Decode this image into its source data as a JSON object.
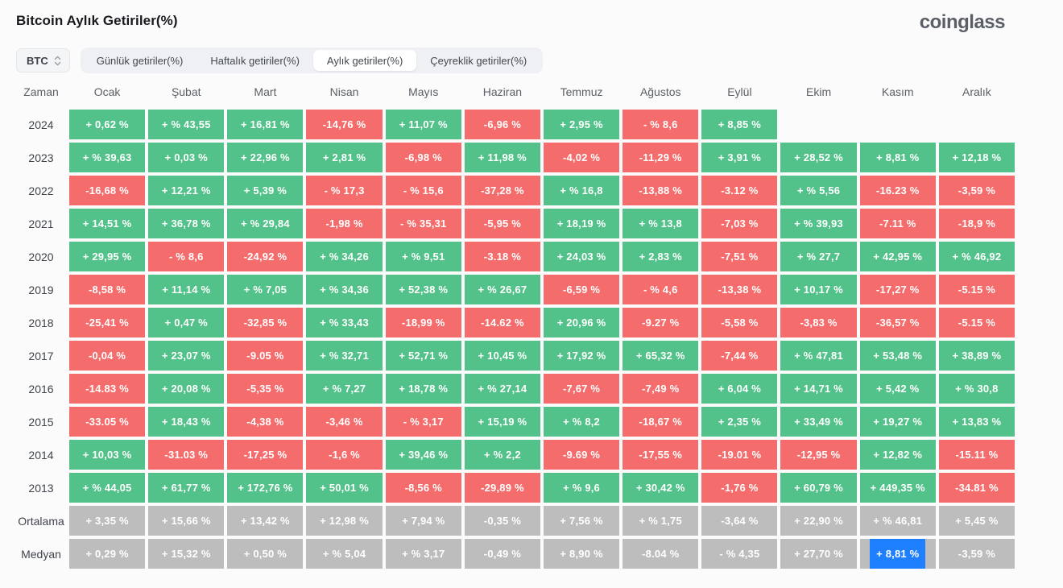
{
  "header": {
    "title": "Bitcoin Aylık Getiriler(%)",
    "logo": "coinglass"
  },
  "controls": {
    "symbol": "BTC",
    "tabs": [
      {
        "label": "Günlük getiriler(%)",
        "active": false
      },
      {
        "label": "Haftalık getiriler(%)",
        "active": false
      },
      {
        "label": "Aylık getiriler(%)",
        "active": true
      },
      {
        "label": "Çeyreklik getiriler(%)",
        "active": false
      }
    ]
  },
  "colors": {
    "positive": "#53c28a",
    "negative": "#f56c6c",
    "neutral": "#bdbdbd",
    "selected": "#1e80ff"
  },
  "table": {
    "time_header": "Zaman",
    "months": [
      "Ocak",
      "Şubat",
      "Mart",
      "Nisan",
      "Mayıs",
      "Haziran",
      "Temmuz",
      "Ağustos",
      "Eylül",
      "Ekim",
      "Kasım",
      "Aralık"
    ],
    "rows": [
      {
        "label": "2024",
        "cells": [
          {
            "t": "+ 0,62 %",
            "c": "pos"
          },
          {
            "t": "+ % 43,55",
            "c": "pos"
          },
          {
            "t": "+ 16,81 %",
            "c": "pos"
          },
          {
            "t": "-14,76 %",
            "c": "neg"
          },
          {
            "t": "+ 11,07 %",
            "c": "pos"
          },
          {
            "t": "-6,96 %",
            "c": "neg"
          },
          {
            "t": "+ 2,95 %",
            "c": "pos"
          },
          {
            "t": "- % 8,6",
            "c": "neg"
          },
          {
            "t": "+ 8,85 %",
            "c": "pos"
          },
          {
            "t": "",
            "c": "empty"
          },
          {
            "t": "",
            "c": "empty"
          },
          {
            "t": "",
            "c": "empty"
          }
        ]
      },
      {
        "label": "2023",
        "cells": [
          {
            "t": "+ % 39,63",
            "c": "pos"
          },
          {
            "t": "+ 0,03 %",
            "c": "pos"
          },
          {
            "t": "+ 22,96 %",
            "c": "pos"
          },
          {
            "t": "+ 2,81 %",
            "c": "pos"
          },
          {
            "t": "-6,98 %",
            "c": "neg"
          },
          {
            "t": "+ 11,98 %",
            "c": "pos"
          },
          {
            "t": "-4,02 %",
            "c": "neg"
          },
          {
            "t": "-11,29 %",
            "c": "neg"
          },
          {
            "t": "+ 3,91 %",
            "c": "pos"
          },
          {
            "t": "+ 28,52 %",
            "c": "pos"
          },
          {
            "t": "+ 8,81 %",
            "c": "pos"
          },
          {
            "t": "+ 12,18 %",
            "c": "pos"
          }
        ]
      },
      {
        "label": "2022",
        "cells": [
          {
            "t": "-16,68 %",
            "c": "neg"
          },
          {
            "t": "+ 12,21 %",
            "c": "pos"
          },
          {
            "t": "+ 5,39 %",
            "c": "pos"
          },
          {
            "t": "- % 17,3",
            "c": "neg"
          },
          {
            "t": "- % 15,6",
            "c": "neg"
          },
          {
            "t": "-37,28 %",
            "c": "neg"
          },
          {
            "t": "+ % 16,8",
            "c": "pos"
          },
          {
            "t": "-13,88 %",
            "c": "neg"
          },
          {
            "t": "-3.12 %",
            "c": "neg"
          },
          {
            "t": "+ % 5,56",
            "c": "pos"
          },
          {
            "t": "-16.23 %",
            "c": "neg"
          },
          {
            "t": "-3,59 %",
            "c": "neg"
          }
        ]
      },
      {
        "label": "2021",
        "cells": [
          {
            "t": "+ 14,51 %",
            "c": "pos"
          },
          {
            "t": "+ 36,78 %",
            "c": "pos"
          },
          {
            "t": "+ % 29,84",
            "c": "pos"
          },
          {
            "t": "-1,98 %",
            "c": "neg"
          },
          {
            "t": "- % 35,31",
            "c": "neg"
          },
          {
            "t": "-5,95 %",
            "c": "neg"
          },
          {
            "t": "+ 18,19 %",
            "c": "pos"
          },
          {
            "t": "+ % 13,8",
            "c": "pos"
          },
          {
            "t": "-7,03 %",
            "c": "neg"
          },
          {
            "t": "+ % 39,93",
            "c": "pos"
          },
          {
            "t": "-7.11 %",
            "c": "neg"
          },
          {
            "t": "-18,9 %",
            "c": "neg"
          }
        ]
      },
      {
        "label": "2020",
        "cells": [
          {
            "t": "+ 29,95 %",
            "c": "pos"
          },
          {
            "t": "- % 8,6",
            "c": "neg"
          },
          {
            "t": "-24,92 %",
            "c": "neg"
          },
          {
            "t": "+ % 34,26",
            "c": "pos"
          },
          {
            "t": "+ % 9,51",
            "c": "pos"
          },
          {
            "t": "-3.18 %",
            "c": "neg"
          },
          {
            "t": "+ 24,03 %",
            "c": "pos"
          },
          {
            "t": "+ 2,83 %",
            "c": "pos"
          },
          {
            "t": "-7,51 %",
            "c": "neg"
          },
          {
            "t": "+ % 27,7",
            "c": "pos"
          },
          {
            "t": "+ 42,95 %",
            "c": "pos"
          },
          {
            "t": "+ % 46,92",
            "c": "pos"
          }
        ]
      },
      {
        "label": "2019",
        "cells": [
          {
            "t": "-8,58 %",
            "c": "neg"
          },
          {
            "t": "+ 11,14 %",
            "c": "pos"
          },
          {
            "t": "+ % 7,05",
            "c": "pos"
          },
          {
            "t": "+ % 34,36",
            "c": "pos"
          },
          {
            "t": "+ 52,38 %",
            "c": "pos"
          },
          {
            "t": "+ % 26,67",
            "c": "pos"
          },
          {
            "t": "-6,59 %",
            "c": "neg"
          },
          {
            "t": "- % 4,6",
            "c": "neg"
          },
          {
            "t": "-13,38 %",
            "c": "neg"
          },
          {
            "t": "+ 10,17 %",
            "c": "pos"
          },
          {
            "t": "-17,27 %",
            "c": "neg"
          },
          {
            "t": "-5.15 %",
            "c": "neg"
          }
        ]
      },
      {
        "label": "2018",
        "cells": [
          {
            "t": "-25,41 %",
            "c": "neg"
          },
          {
            "t": "+ 0,47 %",
            "c": "pos"
          },
          {
            "t": "-32,85 %",
            "c": "neg"
          },
          {
            "t": "+ % 33,43",
            "c": "pos"
          },
          {
            "t": "-18,99 %",
            "c": "neg"
          },
          {
            "t": "-14.62 %",
            "c": "neg"
          },
          {
            "t": "+ 20,96 %",
            "c": "pos"
          },
          {
            "t": "-9.27 %",
            "c": "neg"
          },
          {
            "t": "-5,58 %",
            "c": "neg"
          },
          {
            "t": "-3,83 %",
            "c": "neg"
          },
          {
            "t": "-36,57 %",
            "c": "neg"
          },
          {
            "t": "-5.15 %",
            "c": "neg"
          }
        ]
      },
      {
        "label": "2017",
        "cells": [
          {
            "t": "-0,04 %",
            "c": "neg"
          },
          {
            "t": "+ 23,07 %",
            "c": "pos"
          },
          {
            "t": "-9.05 %",
            "c": "neg"
          },
          {
            "t": "+ % 32,71",
            "c": "pos"
          },
          {
            "t": "+ 52,71 %",
            "c": "pos"
          },
          {
            "t": "+ 10,45 %",
            "c": "pos"
          },
          {
            "t": "+ 17,92 %",
            "c": "pos"
          },
          {
            "t": "+ 65,32 %",
            "c": "pos"
          },
          {
            "t": "-7,44 %",
            "c": "neg"
          },
          {
            "t": "+ % 47,81",
            "c": "pos"
          },
          {
            "t": "+ 53,48 %",
            "c": "pos"
          },
          {
            "t": "+ 38,89 %",
            "c": "pos"
          }
        ]
      },
      {
        "label": "2016",
        "cells": [
          {
            "t": "-14.83 %",
            "c": "neg"
          },
          {
            "t": "+ 20,08 %",
            "c": "pos"
          },
          {
            "t": "-5,35 %",
            "c": "neg"
          },
          {
            "t": "+ % 7,27",
            "c": "pos"
          },
          {
            "t": "+ 18,78 %",
            "c": "pos"
          },
          {
            "t": "+ % 27,14",
            "c": "pos"
          },
          {
            "t": "-7,67 %",
            "c": "neg"
          },
          {
            "t": "-7,49 %",
            "c": "neg"
          },
          {
            "t": "+ 6,04 %",
            "c": "pos"
          },
          {
            "t": "+ 14,71 %",
            "c": "pos"
          },
          {
            "t": "+ 5,42 %",
            "c": "pos"
          },
          {
            "t": "+ % 30,8",
            "c": "pos"
          }
        ]
      },
      {
        "label": "2015",
        "cells": [
          {
            "t": "-33.05 %",
            "c": "neg"
          },
          {
            "t": "+ 18,43 %",
            "c": "pos"
          },
          {
            "t": "-4,38 %",
            "c": "neg"
          },
          {
            "t": "-3,46 %",
            "c": "neg"
          },
          {
            "t": "- % 3,17",
            "c": "neg"
          },
          {
            "t": "+ 15,19 %",
            "c": "pos"
          },
          {
            "t": "+ % 8,2",
            "c": "pos"
          },
          {
            "t": "-18,67 %",
            "c": "neg"
          },
          {
            "t": "+ 2,35 %",
            "c": "pos"
          },
          {
            "t": "+ 33,49 %",
            "c": "pos"
          },
          {
            "t": "+ 19,27 %",
            "c": "pos"
          },
          {
            "t": "+ 13,83 %",
            "c": "pos"
          }
        ]
      },
      {
        "label": "2014",
        "cells": [
          {
            "t": "+ 10,03 %",
            "c": "pos"
          },
          {
            "t": "-31.03 %",
            "c": "neg"
          },
          {
            "t": "-17,25 %",
            "c": "neg"
          },
          {
            "t": "-1,6 %",
            "c": "neg"
          },
          {
            "t": "+ 39,46 %",
            "c": "pos"
          },
          {
            "t": "+ % 2,2",
            "c": "pos"
          },
          {
            "t": "-9.69 %",
            "c": "neg"
          },
          {
            "t": "-17,55 %",
            "c": "neg"
          },
          {
            "t": "-19.01 %",
            "c": "neg"
          },
          {
            "t": "-12,95 %",
            "c": "neg"
          },
          {
            "t": "+ 12,82 %",
            "c": "pos"
          },
          {
            "t": "-15.11 %",
            "c": "neg"
          }
        ]
      },
      {
        "label": "2013",
        "cells": [
          {
            "t": "+ % 44,05",
            "c": "pos"
          },
          {
            "t": "+ 61,77 %",
            "c": "pos"
          },
          {
            "t": "+ 172,76 %",
            "c": "pos"
          },
          {
            "t": "+ 50,01 %",
            "c": "pos"
          },
          {
            "t": "-8,56 %",
            "c": "neg"
          },
          {
            "t": "-29,89 %",
            "c": "neg"
          },
          {
            "t": "+ % 9,6",
            "c": "pos"
          },
          {
            "t": "+ 30,42 %",
            "c": "pos"
          },
          {
            "t": "-1,76 %",
            "c": "neg"
          },
          {
            "t": "+ 60,79 %",
            "c": "pos"
          },
          {
            "t": "+ 449,35 %",
            "c": "pos"
          },
          {
            "t": "-34.81 %",
            "c": "neg"
          }
        ]
      },
      {
        "label": "Ortalama",
        "cells": [
          {
            "t": "+ 3,35 %",
            "c": "neu"
          },
          {
            "t": "+ 15,66 %",
            "c": "neu"
          },
          {
            "t": "+ 13,42 %",
            "c": "neu"
          },
          {
            "t": "+ 12,98 %",
            "c": "neu"
          },
          {
            "t": "+ 7,94 %",
            "c": "neu"
          },
          {
            "t": "-0,35 %",
            "c": "neu"
          },
          {
            "t": "+ 7,56 %",
            "c": "neu"
          },
          {
            "t": "+ % 1,75",
            "c": "neu"
          },
          {
            "t": "-3,64 %",
            "c": "neu"
          },
          {
            "t": "+ 22,90 %",
            "c": "neu"
          },
          {
            "t": "+ % 46,81",
            "c": "neu"
          },
          {
            "t": "+ 5,45 %",
            "c": "neu"
          }
        ]
      },
      {
        "label": "Medyan",
        "cells": [
          {
            "t": "+ 0,29 %",
            "c": "neu"
          },
          {
            "t": "+ 15,32 %",
            "c": "neu"
          },
          {
            "t": "+ 0,50 %",
            "c": "neu"
          },
          {
            "t": "+ % 5,04",
            "c": "neu"
          },
          {
            "t": "+ % 3,17",
            "c": "neu"
          },
          {
            "t": "-0,49 %",
            "c": "neu"
          },
          {
            "t": "+ 8,90 %",
            "c": "neu"
          },
          {
            "t": "-8.04 %",
            "c": "neu"
          },
          {
            "t": "- % 4,35",
            "c": "neu"
          },
          {
            "t": "+ 27,70 %",
            "c": "neu"
          },
          {
            "t": "+ 8,81 %",
            "c": "neu",
            "selected": true
          },
          {
            "t": "-3,59 %",
            "c": "neu"
          }
        ]
      }
    ]
  }
}
